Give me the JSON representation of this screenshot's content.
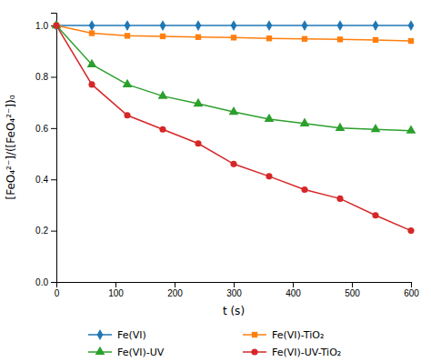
{
  "chart_data": {
    "type": "line",
    "xlabel": "t (s)",
    "ylabel": "[FeO₄²⁻]/([FeO₄²⁻])₀",
    "x": [
      0,
      60,
      120,
      180,
      240,
      300,
      360,
      420,
      480,
      540,
      600
    ],
    "series": [
      {
        "name": "Fe(VI)",
        "marker": "diamond",
        "values": [
          1.0,
          1.0,
          1.0,
          1.0,
          1.0,
          1.0,
          1.0,
          1.0,
          1.0,
          1.0,
          1.0
        ]
      },
      {
        "name": "Fe(VI)-TiO₂",
        "marker": "square",
        "values": [
          1.0,
          0.97,
          0.96,
          0.958,
          0.955,
          0.953,
          0.95,
          0.948,
          0.946,
          0.944,
          0.94
        ]
      },
      {
        "name": "Fe(VI)-UV",
        "marker": "triangle",
        "values": [
          1.0,
          0.848,
          0.77,
          0.725,
          0.695,
          0.663,
          0.635,
          0.618,
          0.6,
          0.595,
          0.59
        ]
      },
      {
        "name": "Fe(VI)-UV-TiO₂",
        "marker": "circle",
        "values": [
          1.0,
          0.77,
          0.65,
          0.595,
          0.54,
          0.46,
          0.412,
          0.36,
          0.325,
          0.26,
          0.2
        ]
      }
    ],
    "xlim": [
      0,
      600
    ],
    "ylim": [
      0,
      1.05
    ],
    "xticks": [
      0,
      100,
      200,
      300,
      400,
      500,
      600
    ],
    "yticks": [
      {
        "value": 0,
        "label": "0.0"
      },
      0.2,
      0.4,
      0.6,
      0.8,
      {
        "value": 1.0,
        "label": "1.0"
      }
    ],
    "grid": false,
    "legend": "bottom"
  }
}
